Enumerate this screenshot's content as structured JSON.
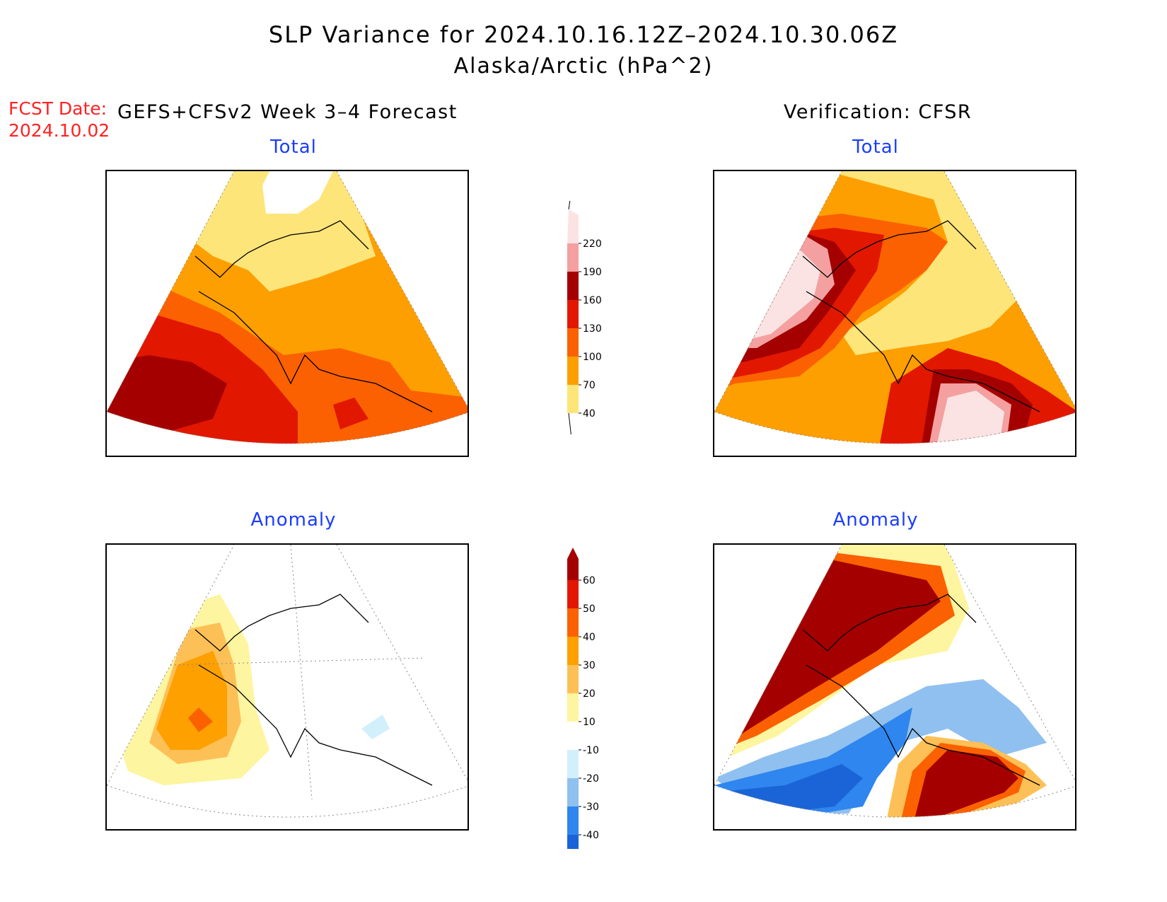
{
  "title": {
    "line1": "SLP Variance for 2024.10.16.12Z–2024.10.30.06Z",
    "line2": "Alaska/Arctic (hPa^2)"
  },
  "forecast": {
    "date_label": "FCST Date:",
    "date_value": "2024.10.02",
    "model_label": "GEFS+CFSv2 Week 3–4 Forecast"
  },
  "verification": {
    "label": "Verification: CFSR"
  },
  "panels": {
    "forecast_total": "Total",
    "verification_total": "Total",
    "forecast_anomaly": "Anomaly",
    "verification_anomaly": "Anomaly"
  },
  "colorbars": {
    "total": {
      "levels": [
        "40",
        "70",
        "100",
        "130",
        "160",
        "190",
        "220"
      ],
      "colors": [
        "#fde57a",
        "#fd9f00",
        "#fb6100",
        "#e21700",
        "#a40000",
        "#f4a0a0",
        "#fbe3e3"
      ]
    },
    "anomaly": {
      "levels": [
        "-40",
        "-30",
        "-20",
        "-10",
        "10",
        "20",
        "30",
        "40",
        "50",
        "60"
      ],
      "colors": [
        "#1a64d8",
        "#2e86ee",
        "#8fc0f0",
        "#d2f0fb",
        "#ffffff",
        "#fdf5a0",
        "#fdc056",
        "#fda000",
        "#fb6100",
        "#e21700",
        "#a40000"
      ]
    }
  },
  "icons": {
    "coastline": "coastline-outline",
    "graticule": "dotted-lat-lon-grid"
  }
}
